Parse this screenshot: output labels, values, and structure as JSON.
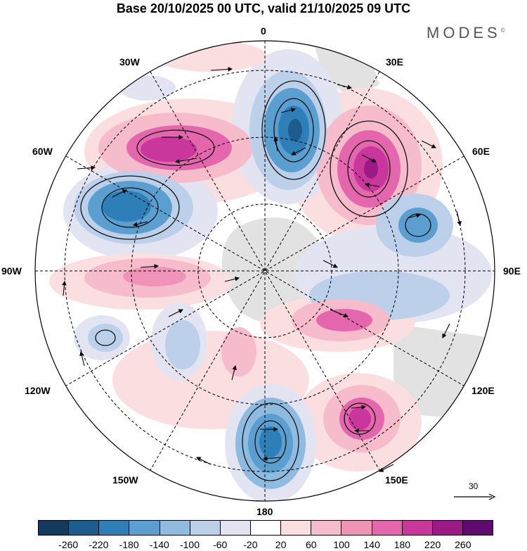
{
  "title": "Base 20/10/2025 00 UTC, valid 21/10/2025 09 UTC",
  "brand": "MODES",
  "brand_mark": "©",
  "longitude_labels": {
    "n": "0",
    "nw": "30W",
    "ne": "30E",
    "w60": "60W",
    "e60": "60E",
    "w90": "90W",
    "e90": "90E",
    "w120": "120W",
    "e120": "120E",
    "w150": "150W",
    "e150": "150E",
    "s": "180"
  },
  "vector_scale": "30",
  "colorbar": {
    "colors": [
      "#123a5e",
      "#1c5d8e",
      "#2e7fb8",
      "#5a9fcf",
      "#8fbbe0",
      "#bcd0ea",
      "#e2e4f2",
      "#ffffff",
      "#fbdfe0",
      "#f6bccb",
      "#f093b8",
      "#e467ad",
      "#c9369c",
      "#9c1a86",
      "#5e0a6e"
    ],
    "ticks": [
      "-260",
      "-220",
      "-180",
      "-140",
      "-100",
      "-60",
      "-20",
      "20",
      "60",
      "100",
      "140",
      "180",
      "220",
      "260"
    ]
  },
  "anomaly_fill": {
    "strong_negative": "#1c5d8e",
    "negative": "#5a9fcf",
    "weak_negative": "#bcd0ea",
    "weak_positive": "#fbdfe0",
    "positive": "#f093b8",
    "strong_positive": "#9c1a86",
    "land": "#e2e2e2"
  }
}
